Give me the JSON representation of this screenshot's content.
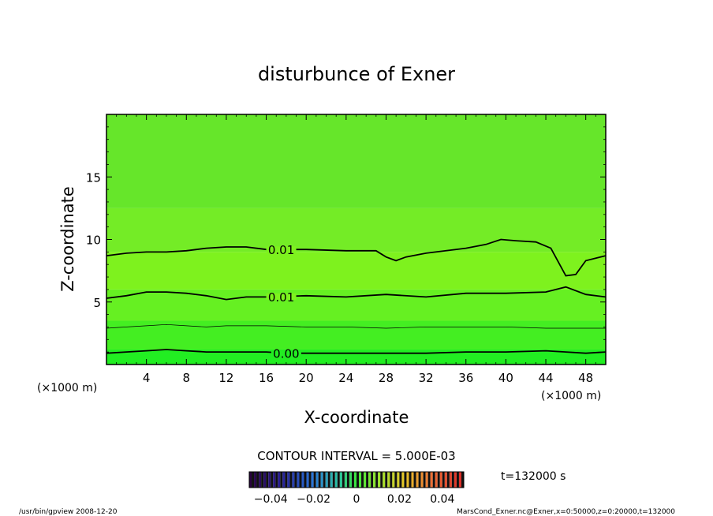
{
  "chart_data": {
    "type": "contour",
    "title": "disturbunce of Exner",
    "xlabel": "X-coordinate",
    "ylabel": "Z-coordinate",
    "x_unit_left": "(×1000 m)",
    "x_unit_right": "(×1000 m)",
    "xlim": [
      0,
      50
    ],
    "ylim": [
      0,
      20
    ],
    "xticks": [
      4,
      8,
      12,
      16,
      20,
      24,
      28,
      32,
      36,
      40,
      44,
      48
    ],
    "yticks": [
      5,
      10,
      15
    ],
    "contour_interval_label": "CONTOUR INTERVAL = 5.000E-03",
    "time_label": "t=132000 s",
    "colorbar": {
      "range": [
        -0.05,
        0.05
      ],
      "ticks": [
        "−0.04",
        "−0.02",
        "0",
        "0.02",
        "0.04"
      ],
      "tick_values": [
        -0.04,
        -0.02,
        0,
        0.02,
        0.04
      ]
    },
    "fill_bands": [
      {
        "z": [
          0,
          1.2
        ],
        "color": "#22ee22"
      },
      {
        "z": [
          1.2,
          3.5
        ],
        "color": "#44ee22"
      },
      {
        "z": [
          3.5,
          6.0
        ],
        "color": "#66f022"
      },
      {
        "z": [
          6.0,
          9.0
        ],
        "color": "#7ef21e"
      },
      {
        "z": [
          9.0,
          12.5
        ],
        "color": "#74ec26"
      },
      {
        "z": [
          12.5,
          20
        ],
        "color": "#66e62a"
      }
    ],
    "contours": [
      {
        "label": "0.00",
        "label_x": 18,
        "style": "thick",
        "x": [
          0,
          2,
          4,
          6,
          8,
          10,
          12,
          14,
          16,
          18,
          20,
          24,
          28,
          32,
          36,
          40,
          44,
          46,
          48,
          50
        ],
        "y": [
          0.9,
          1.0,
          1.1,
          1.2,
          1.1,
          1.0,
          1.0,
          1.0,
          1.0,
          0.9,
          0.9,
          0.9,
          0.9,
          0.9,
          1.0,
          1.0,
          1.1,
          1.0,
          0.9,
          1.0
        ]
      },
      {
        "label": "",
        "label_x": null,
        "style": "thin",
        "x": [
          0,
          2,
          4,
          6,
          8,
          10,
          12,
          16,
          20,
          24,
          28,
          32,
          36,
          40,
          44,
          46,
          48,
          50
        ],
        "y": [
          2.9,
          3.0,
          3.1,
          3.2,
          3.1,
          3.0,
          3.1,
          3.1,
          3.0,
          3.0,
          2.9,
          3.0,
          3.0,
          3.0,
          2.9,
          2.9,
          2.9,
          2.9
        ]
      },
      {
        "label": "0.01",
        "label_x": 17.5,
        "style": "thick",
        "x": [
          0,
          2,
          4,
          6,
          8,
          10,
          12,
          14,
          16,
          20,
          24,
          28,
          32,
          36,
          40,
          44,
          46,
          48,
          50
        ],
        "y": [
          5.3,
          5.5,
          5.8,
          5.8,
          5.7,
          5.5,
          5.2,
          5.4,
          5.4,
          5.5,
          5.4,
          5.6,
          5.4,
          5.7,
          5.7,
          5.8,
          6.2,
          5.6,
          5.4
        ]
      },
      {
        "label": "0.01",
        "label_x": 17.5,
        "style": "thick",
        "x": [
          0,
          2,
          4,
          6,
          8,
          10,
          12,
          14,
          16,
          20,
          24,
          27,
          28,
          29,
          30,
          32,
          36,
          38,
          39.5,
          41,
          43,
          44.5,
          46,
          47,
          48,
          50
        ],
        "y": [
          8.7,
          8.9,
          9.0,
          9.0,
          9.1,
          9.3,
          9.4,
          9.4,
          9.2,
          9.2,
          9.1,
          9.1,
          8.6,
          8.3,
          8.6,
          8.9,
          9.3,
          9.6,
          10.0,
          9.9,
          9.8,
          9.3,
          7.1,
          7.2,
          8.3,
          8.7
        ]
      }
    ]
  },
  "footer": {
    "left": "/usr/bin/gpview   2008-12-20",
    "right": "MarsCond_Exner.nc@Exner,x=0:50000,z=0:20000,t=132000"
  }
}
